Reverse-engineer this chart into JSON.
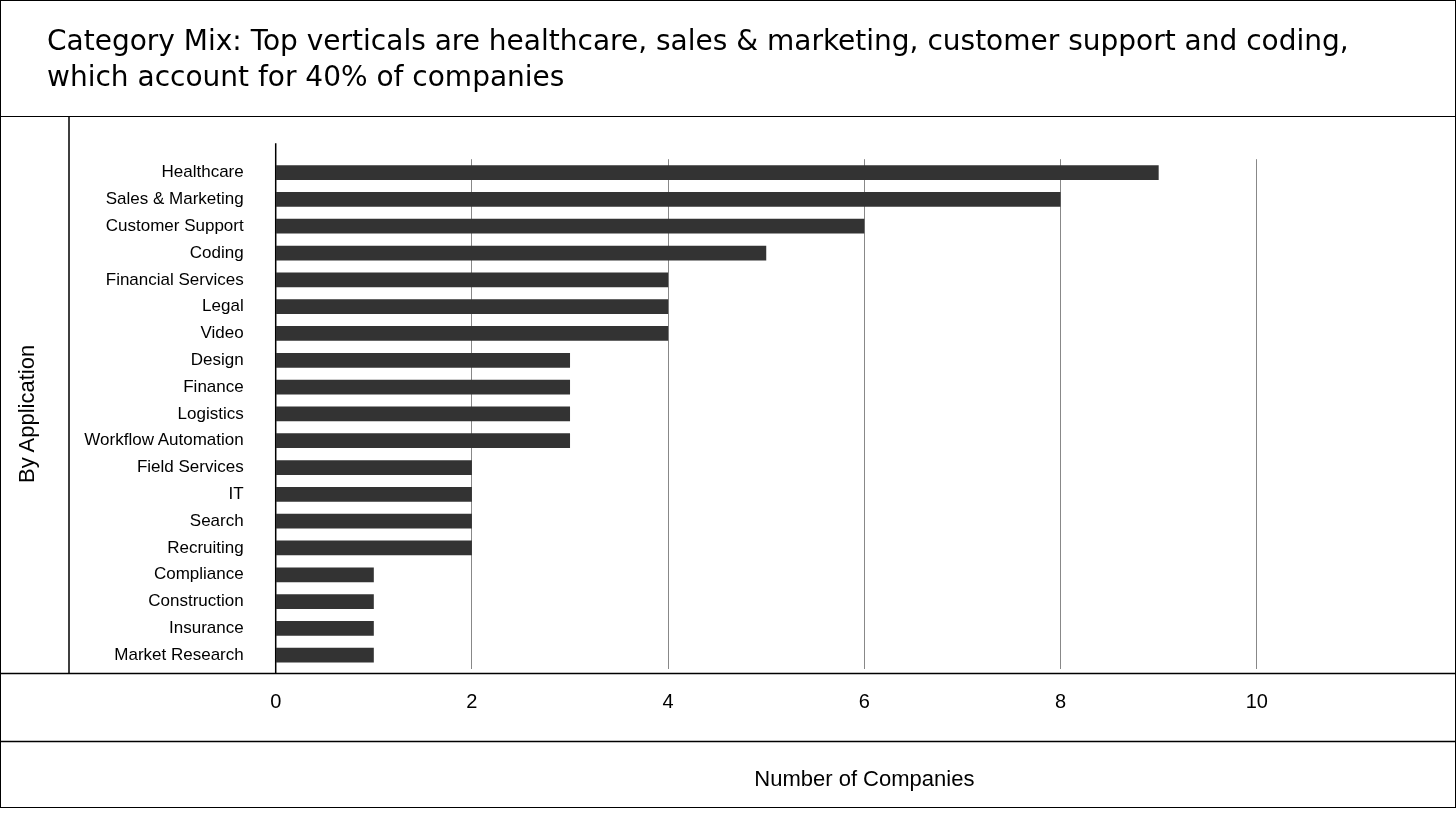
{
  "chart_data": {
    "type": "bar",
    "orientation": "horizontal",
    "title": "Category Mix: Top verticals are healthcare, sales & marketing, customer support and coding, which account for 40% of companies",
    "xlabel": "Number of Companies",
    "ylabel": "By Application",
    "categories": [
      "Healthcare",
      "Sales & Marketing",
      "Customer Support",
      "Coding",
      "Financial Services",
      "Legal",
      "Video",
      "Design",
      "Finance",
      "Logistics",
      "Workflow Automation",
      "Field Services",
      "IT",
      "Search",
      "Recruiting",
      "Compliance",
      "Construction",
      "Insurance",
      "Market Research"
    ],
    "values": [
      9,
      8,
      6,
      5,
      4,
      4,
      4,
      3,
      3,
      3,
      3,
      2,
      2,
      2,
      2,
      1,
      1,
      1,
      1
    ],
    "color": "#333333",
    "xlim": [
      0,
      12
    ],
    "xticks": [
      0,
      2,
      4,
      6,
      8,
      10
    ],
    "grid": "x",
    "legend": false
  }
}
